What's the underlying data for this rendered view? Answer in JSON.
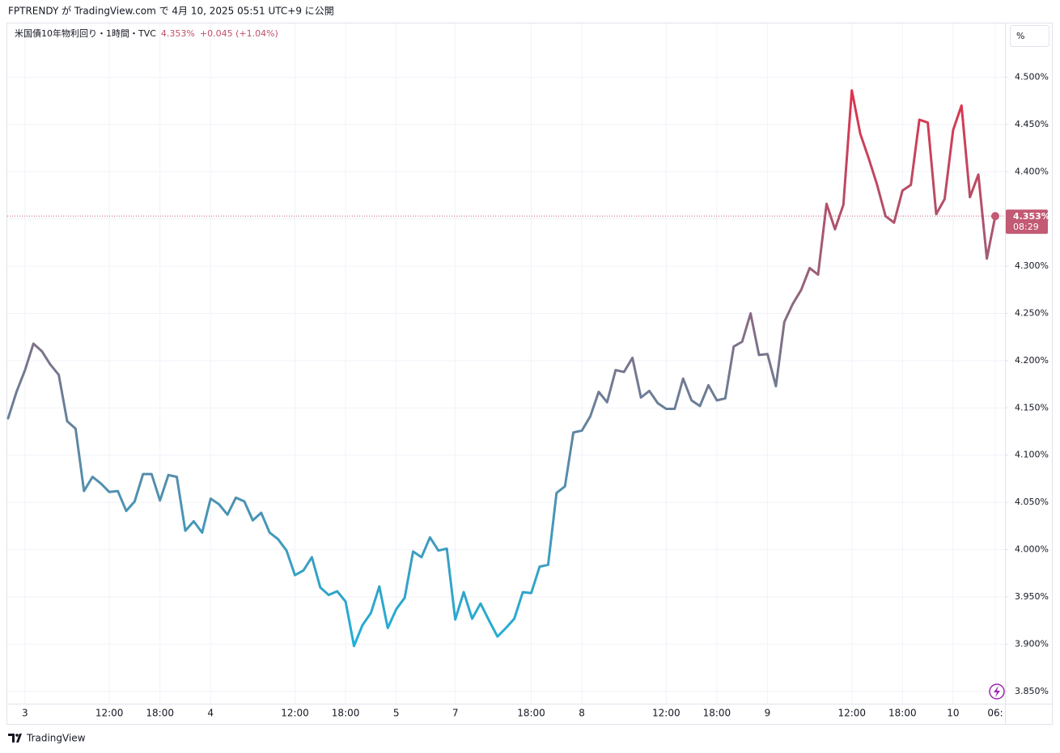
{
  "header": "FPTRENDY が TradingView.com で 4月 10, 2025 05:51 UTC+9 に公開",
  "footer": "TradingView",
  "unit_button": "%",
  "chart_data": {
    "type": "line",
    "legend": {
      "name": "米国債10年物利回り・1時間・TVC",
      "price": "4.353%",
      "change": "+0.045 (+1.04%)"
    },
    "categories": [
      null,
      null,
      "3",
      null,
      null,
      null,
      null,
      null,
      null,
      null,
      null,
      null,
      "12:00",
      null,
      null,
      null,
      null,
      null,
      "18:00",
      null,
      null,
      null,
      null,
      null,
      "4",
      null,
      null,
      null,
      null,
      null,
      null,
      null,
      null,
      null,
      "12:00",
      null,
      null,
      null,
      null,
      null,
      "18:00",
      null,
      null,
      null,
      null,
      null,
      "5",
      null,
      null,
      null,
      null,
      null,
      null,
      "7",
      null,
      null,
      null,
      null,
      null,
      null,
      null,
      null,
      "18:00",
      null,
      null,
      null,
      null,
      null,
      "8",
      null,
      null,
      null,
      null,
      null,
      null,
      null,
      null,
      null,
      "12:00",
      null,
      null,
      null,
      null,
      null,
      "18:00",
      null,
      null,
      null,
      null,
      null,
      "9",
      null,
      null,
      null,
      null,
      null,
      null,
      null,
      null,
      null,
      "12:00",
      null,
      null,
      null,
      null,
      null,
      "18:00",
      null,
      null,
      null,
      null,
      null,
      "10",
      null,
      null,
      null,
      null,
      "06:"
    ],
    "series": [
      {
        "name": "米国債10年物利回り",
        "gradient_colors": [
          "#1fb0d8",
          "#76778f",
          "#e0334d"
        ],
        "values": [
          4.139,
          4.167,
          4.19,
          4.218,
          4.21,
          4.196,
          4.185,
          4.136,
          4.128,
          4.062,
          4.077,
          4.07,
          4.061,
          4.062,
          4.041,
          4.051,
          4.08,
          4.08,
          4.052,
          4.079,
          4.077,
          4.02,
          4.03,
          4.018,
          4.054,
          4.048,
          4.037,
          4.055,
          4.051,
          4.031,
          4.039,
          4.018,
          4.011,
          3.999,
          3.973,
          3.978,
          3.992,
          3.96,
          3.952,
          3.956,
          3.945,
          3.898,
          3.92,
          3.933,
          3.961,
          3.917,
          3.937,
          3.949,
          3.998,
          3.992,
          4.013,
          3.999,
          4.001,
          3.926,
          3.955,
          3.927,
          3.943,
          3.925,
          3.908,
          3.917,
          3.927,
          3.955,
          3.954,
          3.982,
          3.984,
          4.06,
          4.067,
          4.124,
          4.126,
          4.141,
          4.167,
          4.156,
          4.19,
          4.188,
          4.203,
          4.161,
          4.168,
          4.155,
          4.149,
          4.149,
          4.181,
          4.158,
          4.152,
          4.174,
          4.158,
          4.16,
          4.215,
          4.22,
          4.25,
          4.206,
          4.207,
          4.173,
          4.241,
          4.26,
          4.275,
          4.298,
          4.291,
          4.366,
          4.339,
          4.365,
          4.486,
          4.44,
          4.414,
          4.386,
          4.353,
          4.346,
          4.38,
          4.386,
          4.455,
          4.452,
          4.355,
          4.371,
          4.444,
          4.47,
          4.373,
          4.397,
          4.308,
          4.353
        ]
      }
    ],
    "last_price": {
      "value": 4.353,
      "label": "4.353%",
      "countdown": "08:29",
      "color": "#c25a74"
    },
    "ylim": [
      3.837,
      4.556
    ],
    "yticks": [
      {
        "value": 3.85,
        "label": "3.850%"
      },
      {
        "value": 3.9,
        "label": "3.900%"
      },
      {
        "value": 3.95,
        "label": "3.950%"
      },
      {
        "value": 4.0,
        "label": "4.000%"
      },
      {
        "value": 4.05,
        "label": "4.050%"
      },
      {
        "value": 4.1,
        "label": "4.100%"
      },
      {
        "value": 4.15,
        "label": "4.150%"
      },
      {
        "value": 4.2,
        "label": "4.200%"
      },
      {
        "value": 4.25,
        "label": "4.250%"
      },
      {
        "value": 4.3,
        "label": "4.300%"
      },
      {
        "value": 4.35,
        "label": "4.350%"
      },
      {
        "value": 4.4,
        "label": "4.400%"
      },
      {
        "value": 4.45,
        "label": "4.450%"
      },
      {
        "value": 4.5,
        "label": "4.500%"
      }
    ],
    "grid": true
  }
}
